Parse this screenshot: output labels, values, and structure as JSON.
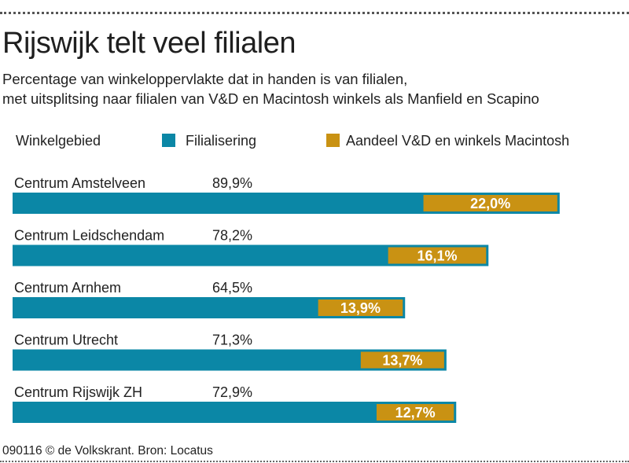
{
  "title": "Rijswijk telt veel filialen",
  "subtitle": {
    "line1": "Percentage  van winkeloppervlakte dat in handen is van filialen,",
    "line2": "met uitsplitsing naar filialen van V&D en Macintosh winkels als Manfield en Scapino"
  },
  "legend": {
    "header": "Winkelgebied",
    "series1": "Filialisering",
    "series2": "Aandeel V&D en winkels Macintosh"
  },
  "colors": {
    "filialisering": "#0b87a6",
    "aandeel": "#c99213"
  },
  "footer": "090116 © de Volkskrant. Bron: Locatus",
  "chart_data": {
    "type": "bar",
    "orientation": "horizontal",
    "categories": [
      "Centrum Amstelveen",
      "Centrum Leidschendam",
      "Centrum Arnhem",
      "Centrum Utrecht",
      "Centrum Rijswijk ZH"
    ],
    "series": [
      {
        "name": "Filialisering",
        "values": [
          89.9,
          78.2,
          64.5,
          71.3,
          72.9
        ],
        "labels": [
          "89,9%",
          "78,2%",
          "64,5%",
          "71,3%",
          "72,9%"
        ]
      },
      {
        "name": "Aandeel V&D en winkels Macintosh",
        "values": [
          22.0,
          16.1,
          13.9,
          13.7,
          12.7
        ],
        "labels": [
          "22,0%",
          "16,1%",
          "13,9%",
          "13,7%",
          "12,7%"
        ]
      }
    ],
    "xlim": [
      0,
      100
    ],
    "grid": false,
    "legend": "top"
  }
}
